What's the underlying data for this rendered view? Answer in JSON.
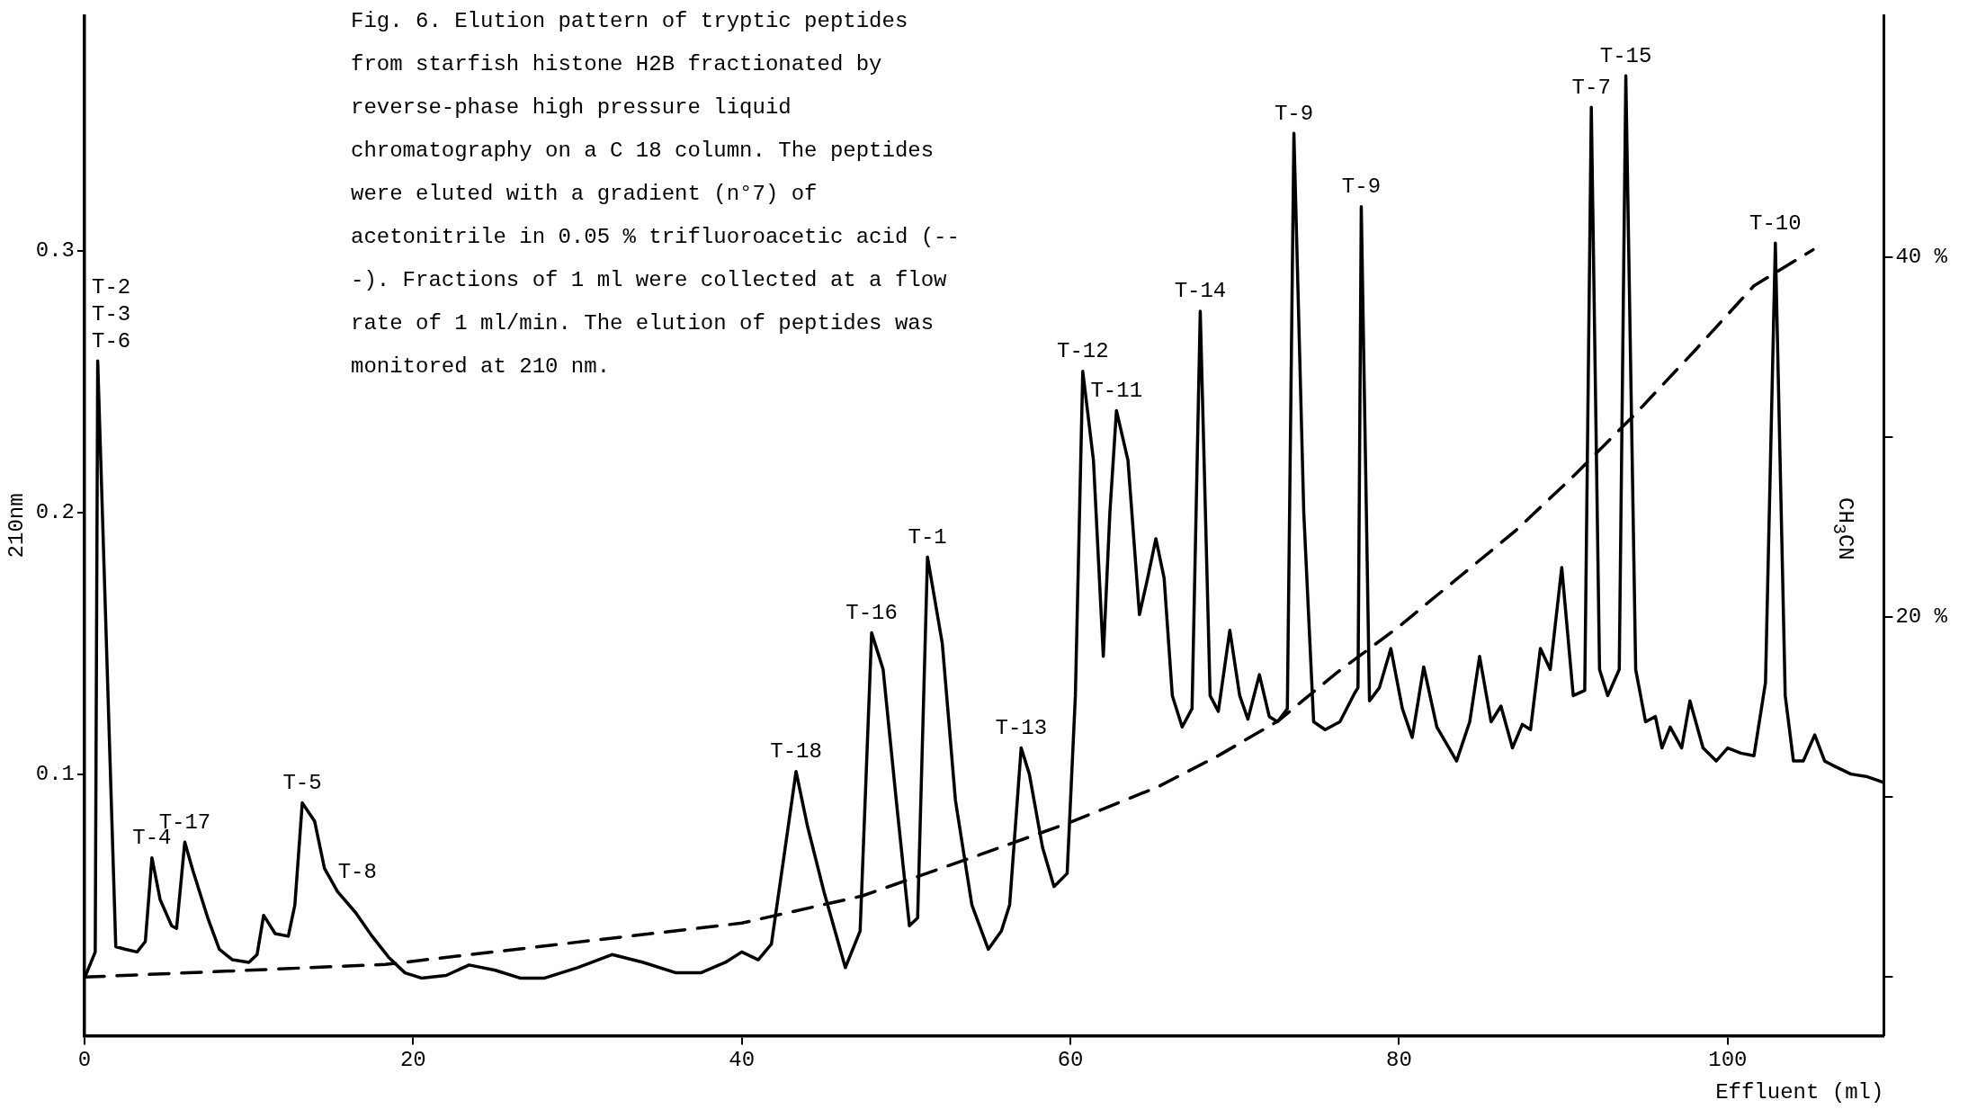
{
  "chart_data": {
    "type": "line",
    "title": "Fig. 6. Elution pattern of tryptic peptides from starfish histone H2B fractionated by reverse-phase high pressure liquid chromatography on a C 18 column. The peptides were eluted with a gradient (n°7) of acetonitrile in 0.05 % trifluoroacetic acid (---). Fractions of 1 ml were collected at a flow rate of 1 ml/min. The elution of peptides was monitored at 210 nm.",
    "xlabel": "Effluent (ml)",
    "ylabel": "210nm",
    "y2label": "CH$_{3}$CN",
    "xlim": [
      0,
      109.5
    ],
    "xticks": [
      0,
      20,
      40,
      60,
      80,
      100
    ],
    "ylim": [
      0,
      0.39
    ],
    "yticks": [
      0.1,
      0.2,
      0.3
    ],
    "y2lim": [
      -3.25,
      53.4
    ],
    "y2ticks": [
      {
        "value": 0,
        "label": null
      },
      {
        "value": 10,
        "label": null
      },
      {
        "value": 20,
        "label": "20 %"
      },
      {
        "value": 30,
        "label": null
      },
      {
        "value": 40,
        "label": "40 %"
      }
    ],
    "grid": false,
    "legend": false,
    "marker": "none",
    "series": [
      {
        "type": "line",
        "color": "#000000",
        "line_style": "solid",
        "x": [
          0,
          0.65,
          0.8,
          1.9,
          2.5,
          3.2,
          3.7,
          4.1,
          4.6,
          5.3,
          5.6,
          6.1,
          6.6,
          7.5,
          8.2,
          9,
          10,
          10.5,
          10.9,
          11.6,
          12.4,
          12.8,
          13.25,
          14,
          14.6,
          15.4,
          16.5,
          17.5,
          18.5,
          19.5,
          20.5,
          22,
          23.4,
          25,
          26.5,
          28,
          30,
          32.1,
          34,
          36,
          37.5,
          39,
          40,
          41,
          41.8,
          42.6,
          43.3,
          44,
          45,
          46.3,
          47.2,
          47.9,
          48.6,
          49.4,
          50.2,
          50.7,
          51.3,
          52.2,
          53,
          54,
          55,
          55.8,
          56.3,
          57,
          57.5,
          58.3,
          59,
          59.8,
          60.3,
          60.75,
          61.4,
          62,
          62.4,
          62.8,
          63.5,
          64.2,
          64.7,
          65.2,
          65.7,
          66.2,
          66.8,
          67.4,
          67.9,
          68.5,
          69,
          69.7,
          70.3,
          70.8,
          71.5,
          72.1,
          72.6,
          73.2,
          73.6,
          74.2,
          74.8,
          75.5,
          76.4,
          77.3,
          77.5,
          77.7,
          78.2,
          78.8,
          79.5,
          80.2,
          80.8,
          81.5,
          82.3,
          83.5,
          84.3,
          84.9,
          85.6,
          86.2,
          86.9,
          87.5,
          88,
          88.6,
          89.2,
          89.9,
          90.6,
          91.3,
          91.7,
          92.2,
          92.7,
          93.4,
          93.8,
          94.4,
          95,
          95.6,
          96,
          96.5,
          97.2,
          97.7,
          98.5,
          99.3,
          100,
          100.8,
          101.6,
          102.3,
          102.9,
          103.5,
          104,
          104.6,
          105.3,
          105.9,
          106.5,
          107.5,
          108.5,
          109.4
        ],
        "values": [
          0.022,
          0.032,
          0.258,
          0.034,
          0.033,
          0.032,
          0.036,
          0.068,
          0.052,
          0.042,
          0.041,
          0.074,
          0.063,
          0.045,
          0.033,
          0.029,
          0.028,
          0.031,
          0.046,
          0.039,
          0.038,
          0.05,
          0.089,
          0.082,
          0.064,
          0.055,
          0.047,
          0.038,
          0.03,
          0.024,
          0.022,
          0.023,
          0.027,
          0.025,
          0.022,
          0.022,
          0.026,
          0.031,
          0.028,
          0.024,
          0.024,
          0.028,
          0.032,
          0.029,
          0.035,
          0.07,
          0.101,
          0.08,
          0.055,
          0.026,
          0.04,
          0.154,
          0.14,
          0.09,
          0.042,
          0.045,
          0.183,
          0.15,
          0.09,
          0.05,
          0.033,
          0.04,
          0.05,
          0.11,
          0.1,
          0.072,
          0.057,
          0.062,
          0.13,
          0.254,
          0.22,
          0.145,
          0.2,
          0.239,
          0.22,
          0.161,
          0.175,
          0.19,
          0.175,
          0.13,
          0.118,
          0.125,
          0.277,
          0.13,
          0.124,
          0.155,
          0.13,
          0.121,
          0.138,
          0.122,
          0.12,
          0.125,
          0.345,
          0.2,
          0.12,
          0.117,
          0.12,
          0.131,
          0.133,
          0.317,
          0.128,
          0.133,
          0.148,
          0.125,
          0.114,
          0.141,
          0.118,
          0.105,
          0.12,
          0.145,
          0.12,
          0.126,
          0.11,
          0.119,
          0.117,
          0.148,
          0.14,
          0.179,
          0.13,
          0.132,
          0.355,
          0.14,
          0.13,
          0.14,
          0.367,
          0.14,
          0.12,
          0.122,
          0.11,
          0.118,
          0.11,
          0.128,
          0.11,
          0.105,
          0.11,
          0.108,
          0.107,
          0.135,
          0.303,
          0.13,
          0.105,
          0.105,
          0.115,
          0.105,
          0.103,
          0.1,
          0.099,
          0.097
        ]
      },
      {
        "type": "line",
        "color": "#000000",
        "line_style": "dashed",
        "axis": "y2",
        "x": [
          0,
          18.3,
          40,
          47.3,
          54.5,
          60,
          65.4,
          69,
          72.6,
          76.2,
          79.9,
          83.5,
          87.1,
          90.7,
          94.4,
          98,
          101.6,
          105.2
        ],
        "values": [
          0,
          0.7,
          3,
          4.5,
          6.8,
          8.6,
          10.6,
          12.3,
          14.2,
          16.9,
          19.4,
          22.1,
          24.8,
          27.9,
          31.3,
          34.8,
          38.4,
          40.4
        ]
      }
    ],
    "annotations": [
      {
        "text": "T-2\nT-3\nT-6",
        "x": 0.8,
        "y": 0.258
      },
      {
        "text": "T-4",
        "x": 4.1,
        "y": 0.068
      },
      {
        "text": "T-17",
        "x": 6.1,
        "y": 0.074
      },
      {
        "text": "T-5",
        "x": 13.25,
        "y": 0.089
      },
      {
        "text": "T-8",
        "x": 16.6,
        "y": 0.048
      },
      {
        "text": "T-18",
        "x": 43.3,
        "y": 0.101
      },
      {
        "text": "T-16",
        "x": 47.9,
        "y": 0.154
      },
      {
        "text": "T-1",
        "x": 51.3,
        "y": 0.183
      },
      {
        "text": "T-13",
        "x": 57,
        "y": 0.11
      },
      {
        "text": "T-12",
        "x": 60.75,
        "y": 0.254
      },
      {
        "text": "T-11",
        "x": 62.8,
        "y": 0.239
      },
      {
        "text": "T-14",
        "x": 67.9,
        "y": 0.277
      },
      {
        "text": "T-9",
        "x": 73.6,
        "y": 0.345
      },
      {
        "text": "T-9",
        "x": 77.7,
        "y": 0.317
      },
      {
        "text": "T-7",
        "x": 91.7,
        "y": 0.355
      },
      {
        "text": "T-15",
        "x": 93.8,
        "y": 0.367
      },
      {
        "text": "T-10",
        "x": 102.9,
        "y": 0.303
      }
    ]
  }
}
